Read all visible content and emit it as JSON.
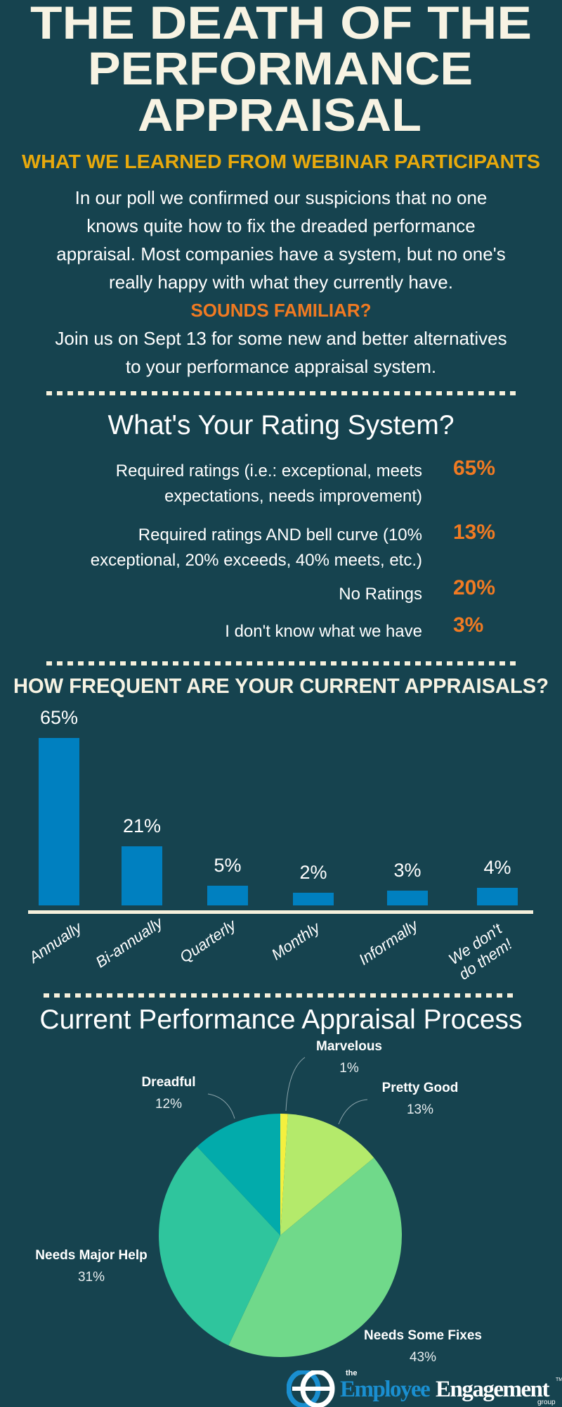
{
  "header": {
    "title_lines": [
      "THE DEATH OF THE",
      "PERFORMANCE",
      "APPRAISAL"
    ],
    "subtitle": "WHAT WE LEARNED FROM WEBINAR PARTICIPANTS"
  },
  "intro": {
    "lines": [
      "In our poll we confirmed our suspicions that no one",
      "knows quite how to fix the dreaded performance",
      "appraisal.  Most companies have a system, but no one's",
      "really happy with what they currently have."
    ],
    "highlight": "SOUNDS FAMILIAR?",
    "cta_lines": [
      "Join us on Sept 13 for some new and better alternatives",
      "to your performance appraisal system."
    ]
  },
  "rating": {
    "heading": "What's Your Rating System?",
    "rows": [
      {
        "lines": [
          "Required ratings (i.e.: exceptional, meets",
          "expectations, needs improvement)"
        ],
        "pct": "65%"
      },
      {
        "lines": [
          "Required ratings AND bell curve  (10%",
          "exceptional, 20% exceeds, 40% meets, etc.)"
        ],
        "pct": "13%"
      },
      {
        "lines": [
          "No Ratings"
        ],
        "pct": "20%"
      },
      {
        "lines": [
          "I don't know what we have"
        ],
        "pct": "3%"
      }
    ]
  },
  "chart_data": [
    {
      "type": "bar",
      "title": "HOW FREQUENT ARE YOUR CURRENT APPRAISALS?",
      "categories": [
        "Annually",
        "Bi-annually",
        "Quarterly",
        "Monthly",
        "Informally",
        "We don't\ndo them!"
      ],
      "values": [
        65,
        21,
        5,
        2,
        3,
        4
      ],
      "value_suffix": "%",
      "xlabel": "",
      "ylabel": "",
      "grid": false,
      "color": "#0080c0"
    },
    {
      "type": "pie",
      "title": "Current Performance Appraisal Process",
      "slices": [
        {
          "label": "Marvelous",
          "value": 1,
          "pct": "1%",
          "color": "#f4f03f"
        },
        {
          "label": "Pretty Good",
          "value": 13,
          "pct": "13%",
          "color": "#b4ea6b"
        },
        {
          "label": "Needs Some Fixes",
          "value": 43,
          "pct": "43%",
          "color": "#70d98a"
        },
        {
          "label": "Needs Major Help",
          "value": 31,
          "pct": "31%",
          "color": "#2fc59d"
        },
        {
          "label": "Dreadful",
          "value": 12,
          "pct": "12%",
          "color": "#02abab"
        }
      ]
    }
  ],
  "logo": {
    "the": "the",
    "word1": "Employee",
    "word2": "Engagement",
    "group": "group",
    "tm": "TM"
  },
  "colors": {
    "background": "#16434f",
    "accent_yellow": "#e8a90c",
    "accent_orange": "#f07a22",
    "cream": "#f5f0dc"
  }
}
